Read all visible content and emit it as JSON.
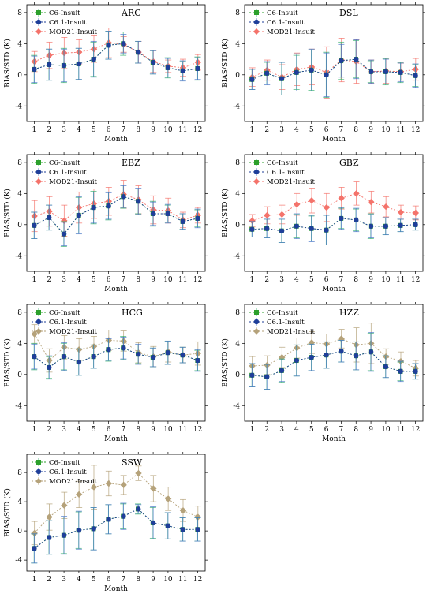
{
  "figure": {
    "colors": {
      "c6": "#2ca02c",
      "c61": "#1f3f99",
      "mod21_orange": "#f4736b",
      "mod21_tan": "#b5a27a",
      "errbar_c6": "#3cb371",
      "errbar_c61": "#4a77c9"
    },
    "legend_labels": [
      "C6-Insuit",
      "C6.1-Insuit",
      "MOD21-Insuit"
    ]
  },
  "chart_data": [
    {
      "type": "line",
      "title": "ARC",
      "xlabel": "Month",
      "ylabel": "BIAS/STD (K)",
      "x": [
        1,
        2,
        3,
        4,
        5,
        6,
        7,
        8,
        9,
        10,
        11,
        12
      ],
      "xlim": [
        0.5,
        12.5
      ],
      "ylim": [
        -6,
        9
      ],
      "yticks": [
        -4,
        0,
        4,
        8
      ],
      "mod21_color": "#f4736b",
      "mod21_marker": "diamond",
      "series": [
        {
          "name": "C6-Insuit",
          "values": [
            0.7,
            1.3,
            1.2,
            1.4,
            2.0,
            3.8,
            4.0,
            2.9,
            1.6,
            0.9,
            0.5,
            0.8
          ],
          "err": [
            1.8,
            2.0,
            2.2,
            2.0,
            2.2,
            1.8,
            1.5,
            1.4,
            1.5,
            1.3,
            1.2,
            1.5
          ]
        },
        {
          "name": "C6.1-Insuit",
          "values": [
            0.7,
            1.3,
            1.2,
            1.4,
            2.0,
            3.8,
            4.0,
            2.9,
            1.6,
            0.9,
            0.5,
            0.8
          ],
          "err": [
            1.7,
            2.0,
            2.1,
            2.0,
            2.3,
            1.8,
            1.2,
            1.4,
            1.5,
            1.2,
            1.3,
            1.4
          ]
        },
        {
          "name": "MOD21-Insuit",
          "values": [
            1.7,
            2.5,
            2.8,
            2.9,
            3.3,
            4.1,
            3.9,
            2.9,
            1.7,
            1.1,
            0.9,
            1.6
          ],
          "err": [
            1.3,
            1.7,
            2.0,
            1.6,
            1.7,
            1.9,
            1.0,
            1.4,
            1.4,
            0.8,
            1.1,
            1.0
          ]
        }
      ]
    },
    {
      "type": "line",
      "title": "DSL",
      "xlabel": "Month",
      "ylabel": "BIAS/STD (K)",
      "x": [
        1,
        2,
        3,
        4,
        5,
        6,
        7,
        8,
        9,
        10,
        11,
        12
      ],
      "xlim": [
        0.5,
        12.5
      ],
      "ylim": [
        -6,
        9
      ],
      "yticks": [
        -4,
        0,
        4,
        8
      ],
      "mod21_color": "#f4736b",
      "mod21_marker": "diamond",
      "series": [
        {
          "name": "C6-Insuit",
          "values": [
            -0.6,
            0.2,
            -0.5,
            0.3,
            0.6,
            0.0,
            1.8,
            2.0,
            0.4,
            0.4,
            0.3,
            -0.1
          ],
          "err": [
            1.3,
            1.4,
            2.1,
            2.2,
            2.6,
            2.9,
            2.4,
            2.4,
            1.4,
            1.7,
            1.3,
            1.4
          ]
        },
        {
          "name": "C6.1-Insuit",
          "values": [
            -0.6,
            0.2,
            -0.5,
            0.3,
            0.6,
            0.0,
            1.8,
            2.0,
            0.4,
            0.4,
            0.3,
            -0.1
          ],
          "err": [
            1.3,
            1.5,
            2.1,
            2.4,
            2.7,
            2.8,
            2.1,
            2.5,
            1.5,
            1.6,
            1.2,
            1.5
          ]
        },
        {
          "name": "MOD21-Insuit",
          "values": [
            -0.3,
            0.6,
            -0.3,
            0.7,
            1.0,
            0.3,
            1.9,
            1.7,
            0.4,
            0.5,
            0.4,
            0.7
          ],
          "err": [
            1.2,
            1.3,
            1.6,
            2.1,
            2.3,
            3.3,
            2.8,
            2.8,
            1.5,
            1.6,
            1.1,
            1.4
          ]
        }
      ]
    },
    {
      "type": "line",
      "title": "EBZ",
      "xlabel": "Month",
      "ylabel": "BIAS/STD (K)",
      "x": [
        1,
        2,
        3,
        4,
        5,
        6,
        7,
        8,
        9,
        10,
        11,
        12
      ],
      "xlim": [
        0.5,
        12.5
      ],
      "ylim": [
        -6,
        9
      ],
      "yticks": [
        -4,
        0,
        4,
        8
      ],
      "mod21_color": "#f4736b",
      "mod21_marker": "diamond",
      "series": [
        {
          "name": "C6-Insuit",
          "values": [
            -0.1,
            0.9,
            -1.2,
            1.2,
            2.2,
            2.4,
            3.6,
            3.0,
            1.4,
            1.4,
            0.4,
            0.8
          ],
          "err": [
            1.7,
            1.6,
            1.6,
            2.3,
            2.1,
            1.8,
            1.5,
            1.6,
            1.6,
            1.1,
            1.0,
            1.1
          ]
        },
        {
          "name": "C6.1-Insuit",
          "values": [
            -0.1,
            0.9,
            -1.2,
            1.2,
            2.2,
            2.4,
            3.6,
            3.0,
            1.4,
            1.4,
            0.4,
            0.8
          ],
          "err": [
            1.7,
            1.6,
            1.5,
            2.4,
            2.0,
            1.7,
            1.4,
            1.7,
            1.5,
            1.2,
            1.0,
            1.2
          ]
        },
        {
          "name": "MOD21-Insuit",
          "values": [
            1.1,
            1.7,
            0.5,
            2.2,
            2.7,
            3.0,
            3.9,
            3.2,
            1.9,
            1.8,
            0.6,
            1.2
          ],
          "err": [
            2.0,
            1.9,
            2.0,
            2.0,
            1.9,
            1.8,
            1.8,
            1.8,
            1.8,
            1.6,
            1.0,
            1.0
          ]
        }
      ]
    },
    {
      "type": "line",
      "title": "GBZ",
      "xlabel": "Month",
      "ylabel": "BIAS/STD (K)",
      "x": [
        1,
        2,
        3,
        4,
        5,
        6,
        7,
        8,
        9,
        10,
        11,
        12
      ],
      "xlim": [
        0.5,
        12.5
      ],
      "ylim": [
        -6,
        9
      ],
      "yticks": [
        -4,
        0,
        4,
        8
      ],
      "mod21_color": "#f4736b",
      "mod21_marker": "diamond",
      "series": [
        {
          "name": "C6-Insuit",
          "values": [
            -0.6,
            -0.5,
            -0.8,
            -0.2,
            -0.5,
            -0.7,
            0.8,
            0.6,
            -0.2,
            -0.2,
            -0.1,
            0.0
          ],
          "err": [
            1.0,
            1.2,
            1.5,
            1.5,
            1.6,
            1.9,
            1.3,
            1.4,
            1.6,
            1.1,
            0.8,
            0.7
          ]
        },
        {
          "name": "C6.1-Insuit",
          "values": [
            -0.6,
            -0.5,
            -0.8,
            -0.2,
            -0.5,
            -0.7,
            0.8,
            0.6,
            -0.2,
            -0.2,
            -0.1,
            0.0
          ],
          "err": [
            1.0,
            1.2,
            1.5,
            1.6,
            1.7,
            1.9,
            1.4,
            1.5,
            1.5,
            1.1,
            0.8,
            0.7
          ]
        },
        {
          "name": "MOD21-Insuit",
          "values": [
            0.5,
            1.2,
            1.3,
            2.6,
            3.1,
            2.2,
            3.4,
            4.0,
            2.9,
            2.3,
            1.6,
            1.5
          ],
          "err": [
            0.8,
            1.1,
            1.2,
            1.4,
            1.6,
            1.8,
            1.4,
            1.5,
            1.4,
            1.3,
            0.9,
            0.9
          ]
        }
      ]
    },
    {
      "type": "line",
      "title": "HCG",
      "xlabel": "Month",
      "ylabel": "BIAS/STD (K)",
      "x": [
        1,
        2,
        3,
        4,
        5,
        6,
        7,
        8,
        9,
        10,
        11,
        12
      ],
      "xlim": [
        0.5,
        12.5
      ],
      "ylim": [
        -6,
        9
      ],
      "yticks": [
        -4,
        0,
        4,
        8
      ],
      "mod21_color": "#b5a27a",
      "mod21_marker": "diamond",
      "series": [
        {
          "name": "C6-Insuit",
          "values": [
            2.3,
            0.9,
            2.3,
            1.6,
            2.3,
            3.2,
            3.4,
            2.6,
            2.2,
            2.8,
            2.5,
            1.8
          ],
          "err": [
            1.7,
            1.4,
            1.7,
            1.7,
            1.5,
            1.5,
            1.5,
            1.2,
            1.2,
            1.5,
            1.0,
            1.3
          ]
        },
        {
          "name": "C6.1-Insuit",
          "values": [
            2.3,
            0.9,
            2.3,
            1.6,
            2.3,
            3.2,
            3.4,
            2.6,
            2.2,
            2.8,
            2.5,
            1.8
          ],
          "err": [
            1.6,
            1.5,
            1.8,
            1.7,
            1.5,
            1.4,
            1.4,
            1.3,
            1.2,
            1.5,
            1.0,
            1.4
          ]
        },
        {
          "name": "MOD21-Insuit",
          "values": [
            5.2,
            1.8,
            3.5,
            3.2,
            3.6,
            4.4,
            4.3,
            2.8,
            2.3,
            2.9,
            2.5,
            2.7
          ],
          "err": [
            1.2,
            1.5,
            1.5,
            1.4,
            1.3,
            1.3,
            1.3,
            1.3,
            1.3,
            1.3,
            1.0,
            1.5
          ]
        }
      ]
    },
    {
      "type": "line",
      "title": "HZZ",
      "xlabel": "Month",
      "ylabel": "BIAS/STD (K)",
      "x": [
        1,
        2,
        3,
        4,
        5,
        6,
        7,
        8,
        9,
        10,
        11,
        12
      ],
      "xlim": [
        0.5,
        12.5
      ],
      "ylim": [
        -6,
        9
      ],
      "yticks": [
        -4,
        0,
        4,
        8
      ],
      "mod21_color": "#b5a27a",
      "mod21_marker": "diamond",
      "series": [
        {
          "name": "C6-Insuit",
          "values": [
            -0.1,
            -0.3,
            0.5,
            1.8,
            2.2,
            2.5,
            3.0,
            2.4,
            2.9,
            1.0,
            0.4,
            0.4
          ],
          "err": [
            1.5,
            1.6,
            1.5,
            2.0,
            1.7,
            1.7,
            1.4,
            1.8,
            2.4,
            1.4,
            1.2,
            1.0
          ]
        },
        {
          "name": "C6.1-Insuit",
          "values": [
            -0.1,
            -0.3,
            0.5,
            1.8,
            2.2,
            2.5,
            3.0,
            2.4,
            2.9,
            1.0,
            0.4,
            0.4
          ],
          "err": [
            1.5,
            1.6,
            1.4,
            2.0,
            1.7,
            1.7,
            1.4,
            1.8,
            2.5,
            1.4,
            1.3,
            1.0
          ]
        },
        {
          "name": "MOD21-Insuit",
          "values": [
            1.1,
            1.2,
            2.2,
            3.4,
            4.1,
            3.9,
            4.6,
            3.8,
            4.0,
            2.3,
            1.7,
            0.8
          ],
          "err": [
            1.2,
            1.2,
            1.3,
            1.3,
            1.4,
            1.3,
            1.2,
            2.2,
            2.6,
            1.0,
            1.2,
            1.0
          ]
        }
      ]
    },
    {
      "type": "line",
      "title": "SSW",
      "xlabel": "Month",
      "ylabel": "BIAS/STD (K)",
      "x": [
        1,
        2,
        3,
        4,
        5,
        6,
        7,
        8,
        9,
        10,
        11,
        12
      ],
      "xlim": [
        0.5,
        12.5
      ],
      "ylim": [
        -5.5,
        10.5
      ],
      "yticks": [
        -4,
        0,
        4,
        8
      ],
      "mod21_color": "#b5a27a",
      "mod21_marker": "diamond",
      "series": [
        {
          "name": "C6-Insuit",
          "values": [
            -2.4,
            -0.9,
            -0.6,
            0.1,
            0.3,
            1.6,
            2.0,
            3.0,
            1.1,
            0.7,
            0.2,
            0.2
          ],
          "err": [
            2.0,
            2.3,
            2.5,
            2.5,
            2.9,
            2.0,
            1.7,
            0.7,
            2.1,
            1.8,
            1.6,
            1.6
          ]
        },
        {
          "name": "C6.1-Insuit",
          "values": [
            -2.4,
            -0.9,
            -0.6,
            0.1,
            0.3,
            1.6,
            2.0,
            3.0,
            1.1,
            0.7,
            0.2,
            0.2
          ],
          "err": [
            2.0,
            2.3,
            2.6,
            2.6,
            2.9,
            2.0,
            1.8,
            0.6,
            2.2,
            1.8,
            1.6,
            1.6
          ]
        },
        {
          "name": "MOD21-Insuit",
          "values": [
            -0.3,
            1.9,
            3.5,
            5.0,
            6.0,
            6.5,
            6.3,
            7.9,
            5.8,
            4.4,
            2.8,
            1.9
          ],
          "err": [
            1.6,
            1.8,
            1.8,
            1.8,
            3.0,
            1.7,
            1.3,
            1.0,
            1.8,
            1.6,
            1.5,
            1.5
          ]
        }
      ]
    }
  ]
}
